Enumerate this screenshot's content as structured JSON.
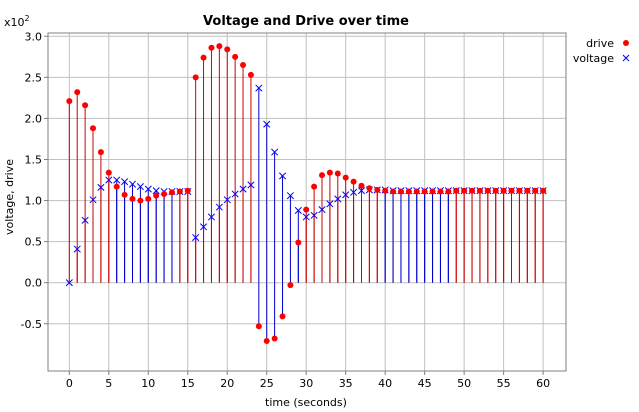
{
  "chart_data": {
    "type": "stem",
    "title": "Voltage and Drive over time",
    "xlabel": "time (seconds)",
    "ylabel": "voltage, drive",
    "y_scale_label": "x10",
    "y_scale_exponent": "2",
    "xlim": [
      -2.7,
      62.9
    ],
    "ylim": [
      -1.075,
      3.04
    ],
    "x_ticks": [
      0,
      5,
      10,
      15,
      20,
      25,
      30,
      35,
      40,
      45,
      50,
      55,
      60
    ],
    "y_ticks": [
      -0.5,
      0.0,
      0.5,
      1.0,
      1.5,
      2.0,
      2.5,
      3.0
    ],
    "y_tick_labels": [
      "-0.5",
      "0.0",
      "0.5",
      "1.0",
      "1.5",
      "2.0",
      "2.5",
      "3.0"
    ],
    "grid": true,
    "legend_position": "top-right",
    "series": [
      {
        "name": "drive",
        "color": "#cc0000",
        "marker_color": "#ff0000",
        "marker": "circle",
        "stem_color": "#cc0000",
        "x": [
          0,
          1,
          2,
          3,
          4,
          5,
          6,
          7,
          8,
          9,
          10,
          11,
          12,
          13,
          14,
          15,
          16,
          17,
          18,
          19,
          20,
          21,
          22,
          23,
          24,
          25,
          26,
          27,
          28,
          29,
          30,
          31,
          32,
          33,
          34,
          35,
          36,
          37,
          38,
          39,
          40,
          41,
          42,
          43,
          44,
          45,
          46,
          47,
          48,
          49,
          50,
          51,
          52,
          53,
          54,
          55,
          56,
          57,
          58,
          59,
          60
        ],
        "values": [
          2.21,
          2.32,
          2.16,
          1.88,
          1.59,
          1.34,
          1.17,
          1.07,
          1.02,
          1.0,
          1.02,
          1.06,
          1.08,
          1.1,
          1.11,
          1.12,
          2.5,
          2.74,
          2.86,
          2.88,
          2.84,
          2.75,
          2.65,
          2.53,
          -0.53,
          -0.71,
          -0.68,
          -0.41,
          -0.03,
          0.49,
          0.89,
          1.17,
          1.31,
          1.34,
          1.33,
          1.28,
          1.23,
          1.18,
          1.15,
          1.13,
          1.12,
          1.11,
          1.11,
          1.11,
          1.11,
          1.11,
          1.11,
          1.11,
          1.11,
          1.12,
          1.12,
          1.12,
          1.12,
          1.12,
          1.12,
          1.12,
          1.12,
          1.12,
          1.12,
          1.12,
          1.12
        ]
      },
      {
        "name": "voltage",
        "color": "#0000cc",
        "marker_color": "#0000ff",
        "marker": "x",
        "stem_color": "#0000cc",
        "x": [
          0,
          1,
          2,
          3,
          4,
          5,
          6,
          7,
          8,
          9,
          10,
          11,
          12,
          13,
          14,
          15,
          16,
          17,
          18,
          19,
          20,
          21,
          22,
          23,
          24,
          25,
          26,
          27,
          28,
          29,
          30,
          31,
          32,
          33,
          34,
          35,
          36,
          37,
          38,
          39,
          40,
          41,
          42,
          43,
          44,
          45,
          46,
          47,
          48,
          49,
          50,
          51,
          52,
          53,
          54,
          55,
          56,
          57,
          58,
          59,
          60
        ],
        "values": [
          0.0,
          0.41,
          0.76,
          1.01,
          1.16,
          1.25,
          1.25,
          1.23,
          1.2,
          1.17,
          1.14,
          1.12,
          1.11,
          1.11,
          1.11,
          1.11,
          0.55,
          0.68,
          0.8,
          0.92,
          1.01,
          1.08,
          1.14,
          1.19,
          2.37,
          1.93,
          1.59,
          1.3,
          1.06,
          0.88,
          0.8,
          0.82,
          0.89,
          0.96,
          1.02,
          1.07,
          1.1,
          1.12,
          1.13,
          1.13,
          1.13,
          1.12,
          1.12,
          1.12,
          1.12,
          1.12,
          1.12,
          1.12,
          1.12,
          1.12,
          1.12,
          1.12,
          1.12,
          1.12,
          1.12,
          1.12,
          1.12,
          1.12,
          1.12,
          1.12,
          1.12
        ]
      }
    ]
  }
}
